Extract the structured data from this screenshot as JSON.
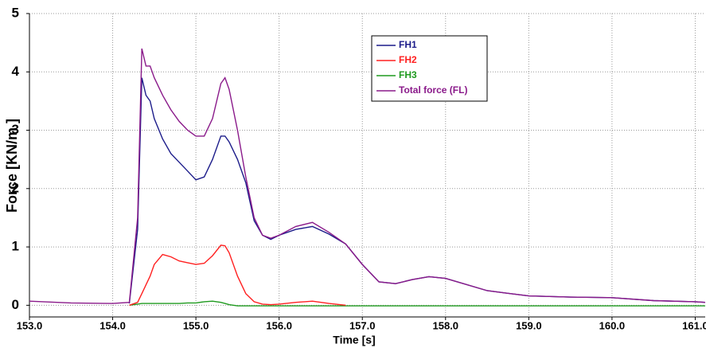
{
  "chart_data": {
    "type": "line",
    "x_label": "Time [s]",
    "y_label": "Force [KN/m ]",
    "x": [
      153.0,
      153.5,
      154.0,
      154.2,
      154.3,
      154.35,
      154.4,
      154.45,
      154.5,
      154.6,
      154.7,
      154.8,
      154.9,
      155.0,
      155.1,
      155.2,
      155.3,
      155.35,
      155.4,
      155.5,
      155.6,
      155.7,
      155.8,
      155.9,
      156.0,
      156.2,
      156.4,
      156.6,
      156.8,
      157.0,
      157.2,
      157.4,
      157.6,
      157.8,
      158.0,
      158.5,
      159.0,
      159.5,
      160.0,
      160.5,
      161.0,
      161.12
    ],
    "series": [
      {
        "name": "FH1",
        "color": "#1c1c8a",
        "values": [
          null,
          null,
          null,
          0.03,
          1.3,
          3.9,
          3.6,
          3.5,
          3.2,
          2.85,
          2.6,
          2.45,
          2.3,
          2.15,
          2.2,
          2.5,
          2.9,
          2.9,
          2.8,
          2.5,
          2.1,
          1.45,
          1.2,
          1.13,
          1.2,
          1.3,
          1.35,
          1.22,
          1.05,
          0.7,
          0.4,
          0.37,
          0.44,
          0.49,
          0.46,
          0.25,
          0.16,
          0.14,
          0.13,
          0.08,
          0.06,
          0.05
        ]
      },
      {
        "name": "FH2",
        "color": "#ff2020",
        "values": [
          null,
          null,
          null,
          0,
          0.05,
          0.2,
          0.35,
          0.5,
          0.7,
          0.87,
          0.83,
          0.76,
          0.73,
          0.7,
          0.72,
          0.85,
          1.03,
          1.02,
          0.9,
          0.5,
          0.2,
          0.06,
          0.02,
          0.01,
          0.02,
          0.05,
          0.07,
          0.03,
          0,
          null,
          null,
          null,
          null,
          null,
          null,
          null,
          null,
          null,
          null,
          null,
          null,
          null
        ]
      },
      {
        "name": "FH3",
        "color": "#1f9a1f",
        "values": [
          null,
          null,
          null,
          0,
          0.02,
          0.03,
          0.03,
          0.03,
          0.03,
          0.03,
          0.03,
          0.03,
          0.04,
          0.04,
          0.06,
          0.07,
          0.05,
          0.03,
          0.01,
          -0.01,
          -0.01,
          -0.01,
          -0.01,
          -0.01,
          -0.01,
          -0.01,
          -0.01,
          -0.01,
          -0.01,
          -0.01,
          -0.01,
          -0.01,
          -0.01,
          -0.01,
          -0.01,
          -0.01,
          -0.01,
          -0.01,
          -0.01,
          -0.01,
          -0.01,
          -0.01
        ]
      },
      {
        "name": "Total force (FL)",
        "color": "#8a1a8a",
        "values": [
          0.07,
          0.04,
          0.03,
          0.05,
          1.5,
          4.4,
          4.1,
          4.1,
          3.9,
          3.6,
          3.35,
          3.15,
          3.0,
          2.9,
          2.9,
          3.2,
          3.8,
          3.9,
          3.7,
          3.0,
          2.2,
          1.5,
          1.2,
          1.15,
          1.2,
          1.35,
          1.42,
          1.25,
          1.05,
          0.7,
          0.4,
          0.37,
          0.44,
          0.49,
          0.46,
          0.25,
          0.16,
          0.14,
          0.13,
          0.08,
          0.06,
          0.05
        ]
      }
    ],
    "xlim": [
      153.0,
      161.12
    ],
    "ylim": [
      -0.2,
      5
    ],
    "xticks": [
      {
        "value": 153,
        "label": "153.0"
      },
      {
        "value": 154,
        "label": "154.0"
      },
      {
        "value": 155,
        "label": "155.0"
      },
      {
        "value": 156,
        "label": "156.0"
      },
      {
        "value": 157,
        "label": "157.0"
      },
      {
        "value": 158,
        "label": "158.0"
      },
      {
        "value": 159,
        "label": "159.0"
      },
      {
        "value": 160,
        "label": "160.0"
      },
      {
        "value": 161,
        "label": "161.0"
      }
    ],
    "yticks": [
      0,
      1,
      2,
      3,
      4,
      5
    ],
    "grid": true,
    "legend": "upper center"
  }
}
